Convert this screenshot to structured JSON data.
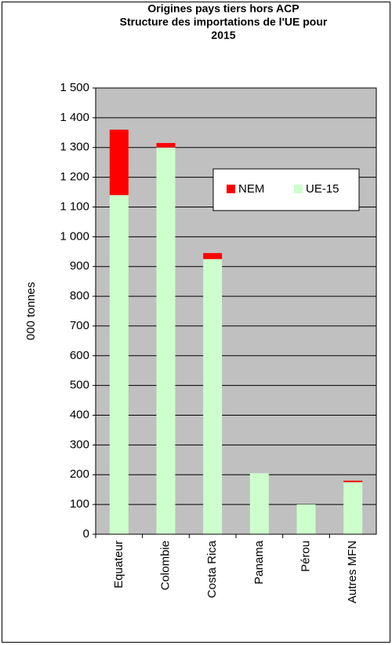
{
  "chart_data": {
    "type": "stacked_bar",
    "title": [
      "Origines pays tiers hors ACP",
      "Structure des importations de l'UE pour",
      "2015"
    ],
    "y_label": "000 tonnes",
    "categories": [
      "Equateur",
      "Colombie",
      "Costa Rica",
      "Panama",
      "Pérou",
      "Autres MFN"
    ],
    "series": [
      {
        "name": "NEM",
        "color": "#ff0000",
        "values": [
          220,
          15,
          20,
          0,
          0,
          5
        ]
      },
      {
        "name": "UE-15",
        "color": "#ccffcc",
        "values": [
          1140,
          1300,
          925,
          205,
          100,
          175
        ]
      }
    ],
    "ylim": [
      0,
      1500
    ],
    "yticks": [
      0,
      100,
      200,
      300,
      400,
      500,
      600,
      700,
      800,
      900,
      {
        "value": 1000,
        "label": "1 000"
      },
      {
        "value": 1100,
        "label": "1 100"
      },
      {
        "value": 1200,
        "label": "1 200"
      },
      {
        "value": 1300,
        "label": "1 300"
      },
      {
        "value": 1400,
        "label": "1 400"
      },
      {
        "value": 1500,
        "label": "1 500"
      }
    ],
    "grid": true,
    "plot_background": "#c0c0c0",
    "legend": "upper right"
  }
}
